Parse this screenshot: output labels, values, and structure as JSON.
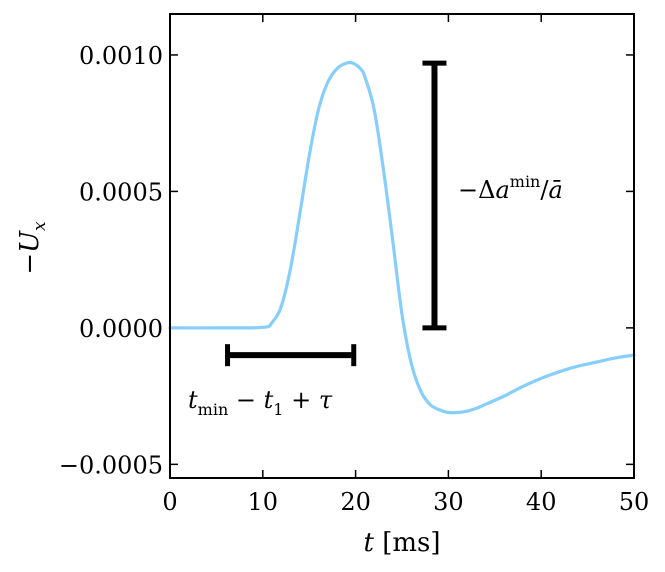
{
  "chart_data": {
    "type": "line",
    "xlabel": "t [ms]",
    "ylabel": "−U_x",
    "xlim": [
      0,
      50
    ],
    "ylim": [
      -0.00055,
      0.00115
    ],
    "xticks": [
      0,
      10,
      20,
      30,
      40,
      50
    ],
    "xtick_labels": [
      "0",
      "10",
      "20",
      "30",
      "40",
      "50"
    ],
    "yticks": [
      -0.0005,
      0.0,
      0.0005,
      0.001
    ],
    "ytick_labels": [
      "−0.0005",
      "0.0000",
      "0.0005",
      "0.0010"
    ],
    "grid": false,
    "series": [
      {
        "color": "#87cefa",
        "x": [
          0,
          5,
          10,
          11,
          12,
          13,
          14,
          15,
          16,
          17,
          18,
          19,
          19.7,
          20.5,
          21,
          22,
          23,
          24,
          25,
          26,
          27,
          28,
          29,
          30,
          31,
          32,
          33,
          34,
          36,
          38,
          40,
          42,
          44,
          46,
          48,
          50
        ],
        "y": [
          0.0,
          0.0,
          2e-06,
          2e-05,
          8e-05,
          0.00022,
          0.00042,
          0.00063,
          0.0008,
          0.0009,
          0.00095,
          0.00097,
          0.00097,
          0.00095,
          0.00092,
          0.0008,
          0.00058,
          0.00032,
          5e-05,
          -0.00013,
          -0.00023,
          -0.00028,
          -0.0003,
          -0.00031,
          -0.00031,
          -0.000305,
          -0.000295,
          -0.00028,
          -0.00025,
          -0.000215,
          -0.000185,
          -0.00016,
          -0.00014,
          -0.000125,
          -0.00011,
          -0.0001
        ]
      }
    ],
    "annotations": {
      "vertical_bar": {
        "x": 28.5,
        "y0": 0.0,
        "y1": 0.00097
      },
      "horizontal_bar": {
        "x0": 6.2,
        "x1": 19.8,
        "y": -0.0001
      },
      "vertical_label": {
        "text": "−Δa^min/ā",
        "x": 31,
        "y": 0.0005
      },
      "horizontal_label": {
        "text": "t_min − t_1 + τ",
        "x": 2,
        "y": -0.00026
      }
    }
  }
}
